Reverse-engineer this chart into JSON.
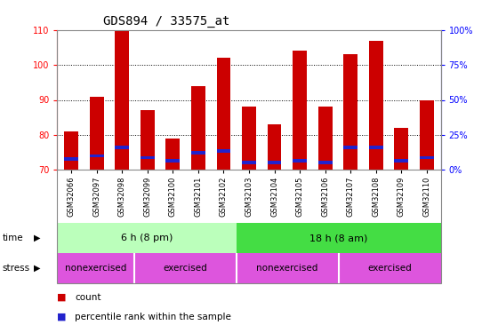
{
  "title": "GDS894 / 33575_at",
  "samples": [
    "GSM32066",
    "GSM32097",
    "GSM32098",
    "GSM32099",
    "GSM32100",
    "GSM32101",
    "GSM32102",
    "GSM32103",
    "GSM32104",
    "GSM32105",
    "GSM32106",
    "GSM32107",
    "GSM32108",
    "GSM32109",
    "GSM32110"
  ],
  "bar_tops": [
    81,
    91,
    110,
    87,
    79,
    94,
    102,
    88,
    83,
    104,
    88,
    103,
    107,
    82,
    90
  ],
  "bar_bottoms": [
    70,
    70,
    70,
    70,
    70,
    70,
    70,
    70,
    70,
    70,
    70,
    70,
    70,
    70,
    70
  ],
  "blue_values": [
    72.5,
    73.5,
    76.0,
    73.0,
    72.0,
    74.5,
    75.0,
    71.5,
    71.5,
    72.0,
    71.5,
    76.0,
    76.0,
    72.0,
    73.0
  ],
  "blue_heights": [
    1.0,
    1.0,
    1.0,
    1.0,
    1.0,
    1.0,
    1.0,
    1.0,
    1.0,
    1.0,
    1.0,
    1.0,
    1.0,
    1.0,
    1.0
  ],
  "ylim_left": [
    70,
    110
  ],
  "ylim_right": [
    0,
    100
  ],
  "yticks_left": [
    70,
    80,
    90,
    100,
    110
  ],
  "yticks_right": [
    0,
    25,
    50,
    75,
    100
  ],
  "ytick_right_labels": [
    "0%",
    "25%",
    "50%",
    "75%",
    "100%"
  ],
  "bar_color": "#cc0000",
  "blue_color": "#2222cc",
  "time_labels": [
    "6 h (8 pm)",
    "18 h (8 am)"
  ],
  "time_split": 7,
  "time_color_left": "#bbffbb",
  "time_color_right": "#44dd44",
  "stress_labels": [
    "nonexercised",
    "exercised",
    "nonexercised",
    "exercised"
  ],
  "stress_splits": [
    0,
    3,
    7,
    11,
    15
  ],
  "stress_color": "#dd55dd",
  "legend_items": [
    "count",
    "percentile rank within the sample"
  ],
  "title_fontsize": 10,
  "tick_fontsize": 7,
  "bar_width": 0.55,
  "fig_bg": "#ffffff",
  "plot_bg": "#ffffff"
}
